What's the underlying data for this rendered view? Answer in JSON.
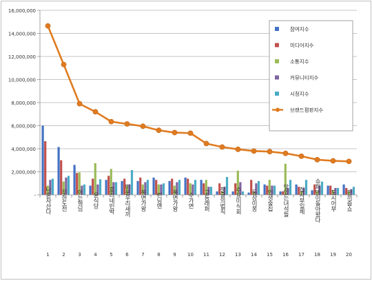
{
  "chart_data": {
    "type": "bar",
    "title": "",
    "xlabel": "",
    "ylabel": "",
    "ylim": [
      0,
      16000000
    ],
    "y_ticks": [
      0,
      2000000,
      4000000,
      6000000,
      8000000,
      10000000,
      12000000,
      14000000,
      16000000
    ],
    "y_tick_labels": [
      "-",
      "2,000,000",
      "4,000,000",
      "6,000,000",
      "8,000,000",
      "10,000,000",
      "12,000,000",
      "14,000,000",
      "16,000,000"
    ],
    "grid": true,
    "legend_position": "top-right",
    "categories": [
      "나혼자산다",
      "무한도전",
      "아는형님",
      "윤식당",
      "효리네민박",
      "미운우리새끼",
      "복면가왕",
      "런닝맨",
      "복면가왕",
      "수가면",
      "고등래퍼",
      "정글의법칙",
      "수요미식회",
      "동상이몽",
      "인생술집",
      "맛있는녀석들",
      "집사부일체",
      "슈퍼맨이돌아왔다",
      "도시어부",
      "한끼줍쇼"
    ],
    "category_numbers": [
      "1",
      "2",
      "3",
      "4",
      "5",
      "6",
      "7",
      "8",
      "9",
      "10",
      "11",
      "12",
      "13",
      "14",
      "15",
      "16",
      "17",
      "18",
      "19",
      "20"
    ],
    "series": [
      {
        "name": "참여지수",
        "type": "bar",
        "color": "#4472c4",
        "values": [
          6000000,
          4150000,
          2600000,
          800000,
          1300000,
          1200000,
          1200000,
          1500000,
          1200000,
          1500000,
          1300000,
          300000,
          300000,
          200000,
          900000,
          300000,
          900000,
          400000,
          800000,
          900000
        ]
      },
      {
        "name": "미디어지수",
        "type": "bar",
        "color": "#c0504d",
        "values": [
          4650000,
          3000000,
          1900000,
          1400000,
          1650000,
          1400000,
          1500000,
          1300000,
          1400000,
          1400000,
          1000000,
          1000000,
          1000000,
          1300000,
          800000,
          300000,
          700000,
          900000,
          800000,
          600000
        ]
      },
      {
        "name": "소통지수",
        "type": "bar",
        "color": "#9bbb59",
        "values": [
          800000,
          1150000,
          1950000,
          2750000,
          2250000,
          800000,
          900000,
          900000,
          800000,
          1000000,
          1300000,
          300000,
          2100000,
          300000,
          1300000,
          2700000,
          300000,
          300000,
          400000,
          300000
        ]
      },
      {
        "name": "커뮤니티지수",
        "type": "bar",
        "color": "#8064a2",
        "values": [
          1300000,
          1500000,
          800000,
          900000,
          1100000,
          900000,
          1100000,
          900000,
          1100000,
          900000,
          700000,
          700000,
          1100000,
          1000000,
          800000,
          600000,
          600000,
          800000,
          600000,
          500000
        ]
      },
      {
        "name": "시청지수",
        "type": "bar",
        "color": "#4bacc6",
        "values": [
          1400000,
          1650000,
          900000,
          1350000,
          1100000,
          2150000,
          1300000,
          1000000,
          1300000,
          1300000,
          700000,
          1550000,
          300000,
          1200000,
          800000,
          1300000,
          1300000,
          1150000,
          600000,
          700000
        ]
      },
      {
        "name": "브랜드평판지수",
        "type": "line",
        "color": "#e07b1f",
        "values": [
          14650000,
          11300000,
          7900000,
          7200000,
          6350000,
          6150000,
          5950000,
          5600000,
          5400000,
          5350000,
          4450000,
          4150000,
          3950000,
          3800000,
          3750000,
          3600000,
          3350000,
          3050000,
          2950000,
          2900000
        ]
      }
    ]
  }
}
